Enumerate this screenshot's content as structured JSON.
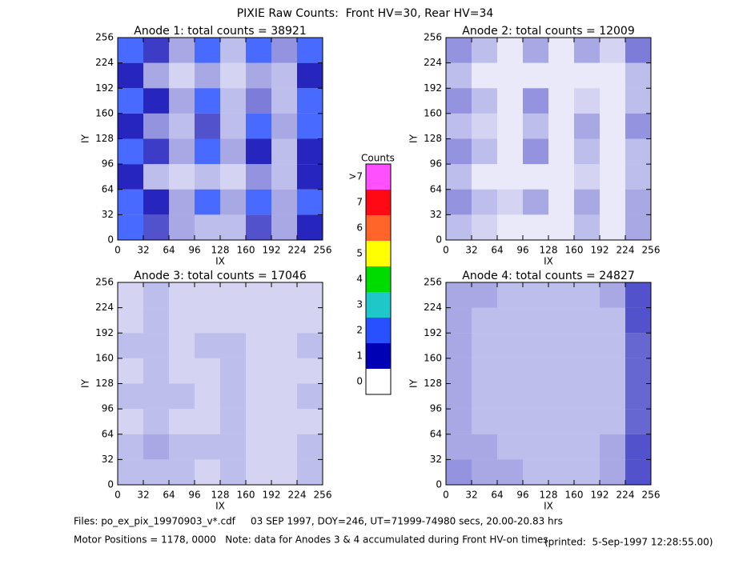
{
  "title": "PIXIE Raw Counts:  Front HV=30, Rear HV=34",
  "chart_data": [
    {
      "type": "heatmap",
      "title": "Anode 1: total counts = 38921",
      "xlabel": "IX",
      "ylabel": "IY",
      "xlim": [
        0,
        256
      ],
      "ylim": [
        0,
        256
      ],
      "xticks": [
        0,
        32,
        64,
        96,
        128,
        160,
        192,
        224,
        256
      ],
      "yticks": [
        0,
        32,
        64,
        96,
        128,
        160,
        192,
        224,
        256
      ],
      "z": [
        [
          1.2,
          0.8,
          0.4,
          0.3,
          0.3,
          0.8,
          0.4,
          1.0
        ],
        [
          1.5,
          1.0,
          0.4,
          1.2,
          0.4,
          1.4,
          0.4,
          1.2
        ],
        [
          1.0,
          0.3,
          0.2,
          0.3,
          0.2,
          0.5,
          0.3,
          1.0
        ],
        [
          1.4,
          0.9,
          0.4,
          1.5,
          0.4,
          1.0,
          0.3,
          1.0
        ],
        [
          1.0,
          0.5,
          0.3,
          0.8,
          0.3,
          1.2,
          0.4,
          1.4
        ],
        [
          1.5,
          1.0,
          0.4,
          1.4,
          0.3,
          0.6,
          0.3,
          1.2
        ],
        [
          1.0,
          0.4,
          0.2,
          0.4,
          0.2,
          0.4,
          0.3,
          1.0
        ],
        [
          1.6,
          0.9,
          0.4,
          1.4,
          0.3,
          1.3,
          0.5,
          1.6
        ]
      ]
    },
    {
      "type": "heatmap",
      "title": "Anode 2: total counts = 12009",
      "xlabel": "IX",
      "ylabel": "IY",
      "xlim": [
        0,
        256
      ],
      "ylim": [
        0,
        256
      ],
      "xticks": [
        0,
        32,
        64,
        96,
        128,
        160,
        192,
        224,
        256
      ],
      "yticks": [
        0,
        32,
        64,
        96,
        128,
        160,
        192,
        224,
        256
      ],
      "z": [
        [
          0.3,
          0.2,
          0.1,
          0.1,
          0.1,
          0.3,
          0.1,
          0.4
        ],
        [
          0.5,
          0.3,
          0.2,
          0.4,
          0.1,
          0.4,
          0.1,
          0.4
        ],
        [
          0.3,
          0.1,
          0.1,
          0.1,
          0.1,
          0.2,
          0.1,
          0.3
        ],
        [
          0.5,
          0.3,
          0.1,
          0.5,
          0.1,
          0.3,
          0.1,
          0.3
        ],
        [
          0.3,
          0.2,
          0.1,
          0.3,
          0.1,
          0.4,
          0.1,
          0.5
        ],
        [
          0.5,
          0.3,
          0.1,
          0.5,
          0.1,
          0.2,
          0.1,
          0.3
        ],
        [
          0.3,
          0.1,
          0.1,
          0.1,
          0.1,
          0.1,
          0.1,
          0.3
        ],
        [
          0.5,
          0.3,
          0.1,
          0.4,
          0.1,
          0.4,
          0.2,
          0.6
        ]
      ]
    },
    {
      "type": "heatmap",
      "title": "Anode 3: total counts = 17046",
      "xlabel": "IX",
      "ylabel": "IY",
      "xlim": [
        0,
        256
      ],
      "ylim": [
        0,
        256
      ],
      "xticks": [
        0,
        32,
        64,
        96,
        128,
        160,
        192,
        224,
        256
      ],
      "yticks": [
        0,
        32,
        64,
        96,
        128,
        160,
        192,
        224,
        256
      ],
      "z": [
        [
          0.3,
          0.3,
          0.3,
          0.2,
          0.3,
          0.2,
          0.2,
          0.3
        ],
        [
          0.3,
          0.4,
          0.3,
          0.3,
          0.3,
          0.2,
          0.2,
          0.3
        ],
        [
          0.2,
          0.3,
          0.2,
          0.2,
          0.3,
          0.2,
          0.2,
          0.2
        ],
        [
          0.3,
          0.3,
          0.3,
          0.2,
          0.3,
          0.2,
          0.2,
          0.3
        ],
        [
          0.2,
          0.3,
          0.2,
          0.2,
          0.3,
          0.2,
          0.2,
          0.2
        ],
        [
          0.3,
          0.3,
          0.2,
          0.3,
          0.3,
          0.2,
          0.2,
          0.3
        ],
        [
          0.2,
          0.3,
          0.2,
          0.2,
          0.2,
          0.2,
          0.2,
          0.2
        ],
        [
          0.2,
          0.3,
          0.2,
          0.2,
          0.2,
          0.2,
          0.2,
          0.2
        ]
      ]
    },
    {
      "type": "heatmap",
      "title": "Anode 4: total counts = 24827",
      "xlabel": "IX",
      "ylabel": "IY",
      "xlim": [
        0,
        256
      ],
      "ylim": [
        0,
        256
      ],
      "xticks": [
        0,
        32,
        64,
        96,
        128,
        160,
        192,
        224,
        256
      ],
      "yticks": [
        0,
        32,
        64,
        96,
        128,
        160,
        192,
        224,
        256
      ],
      "z": [
        [
          0.5,
          0.4,
          0.4,
          0.3,
          0.3,
          0.3,
          0.4,
          0.8
        ],
        [
          0.4,
          0.4,
          0.3,
          0.3,
          0.3,
          0.3,
          0.4,
          0.8
        ],
        [
          0.4,
          0.3,
          0.3,
          0.3,
          0.3,
          0.3,
          0.3,
          0.7
        ],
        [
          0.4,
          0.3,
          0.3,
          0.3,
          0.3,
          0.3,
          0.3,
          0.7
        ],
        [
          0.4,
          0.3,
          0.3,
          0.3,
          0.3,
          0.3,
          0.3,
          0.7
        ],
        [
          0.4,
          0.3,
          0.3,
          0.3,
          0.3,
          0.3,
          0.3,
          0.7
        ],
        [
          0.4,
          0.3,
          0.3,
          0.3,
          0.3,
          0.3,
          0.3,
          0.8
        ],
        [
          0.4,
          0.4,
          0.3,
          0.3,
          0.3,
          0.3,
          0.4,
          0.8
        ]
      ]
    }
  ],
  "colorbar": {
    "title": "Counts",
    "ticks": [
      0,
      1,
      2,
      3,
      4,
      5,
      6,
      7,
      {
        "value": 8,
        "label": ">7"
      }
    ],
    "colors": [
      "#ffffff",
      "#0000b4",
      "#2850ff",
      "#1ec8c8",
      "#00dc00",
      "#ffff00",
      "#ff6428",
      "#ff0a14",
      "#ff50ff"
    ]
  },
  "footer": {
    "files": "Files: po_ex_pix_19970903_v*.cdf     03 SEP 1997, DOY=246, UT=71999-74980 secs, 20.00-20.83 hrs",
    "motor": "Motor Positions = 1178, 0000   Note: data for Anodes 3 & 4 accumulated during Front HV-on times",
    "printed": "(printed:  5-Sep-1997 12:28:55.00)"
  }
}
